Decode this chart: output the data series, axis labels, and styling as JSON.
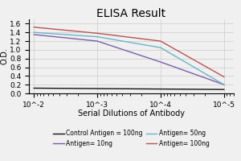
{
  "title": "ELISA Result",
  "ylabel": "O.D.",
  "xlabel": "Serial Dilutions of Antibody",
  "x_values": [
    0.01,
    0.001,
    0.0001,
    1e-05
  ],
  "lines": [
    {
      "label": "Control Antigen = 100ng",
      "color": "#111111",
      "y": [
        0.12,
        0.11,
        0.1,
        0.09
      ]
    },
    {
      "label": "Antigen= 10ng",
      "color": "#7b5ea7",
      "y": [
        1.35,
        1.2,
        0.72,
        0.2
      ]
    },
    {
      "label": "Antigen= 50ng",
      "color": "#6ab4c8",
      "y": [
        1.4,
        1.3,
        1.05,
        0.2
      ]
    },
    {
      "label": "Antigen= 100ng",
      "color": "#b85450",
      "y": [
        1.52,
        1.38,
        1.2,
        0.38
      ]
    }
  ],
  "ylim": [
    0,
    1.7
  ],
  "yticks": [
    0,
    0.2,
    0.4,
    0.6,
    0.8,
    1.0,
    1.2,
    1.4,
    1.6
  ],
  "xlim_left": 0.012,
  "xlim_right": 7e-06,
  "background_color": "#f0f0f0",
  "grid_color": "#cccccc",
  "title_fontsize": 10,
  "ylabel_fontsize": 7,
  "xlabel_fontsize": 7,
  "tick_fontsize": 6.5,
  "legend_fontsize": 5.5
}
